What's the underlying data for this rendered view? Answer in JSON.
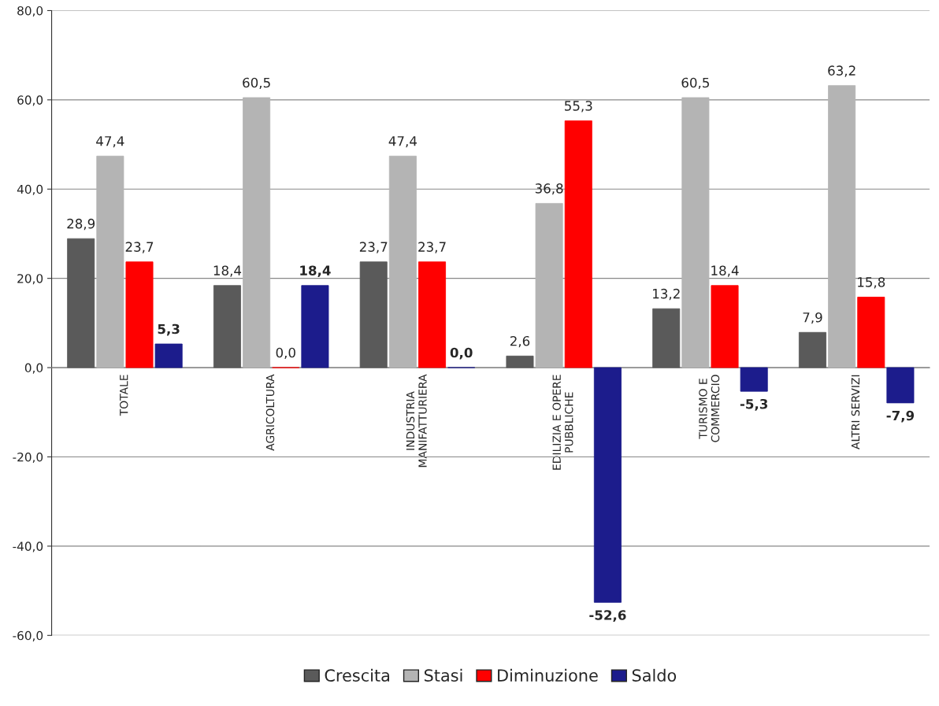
{
  "chart_data": {
    "type": "bar",
    "categories": [
      "TOTALE",
      "AGRICOLTURA",
      "INDUSTRIA\nMANIFATTURIERA",
      "EDILIZIA E OPERE\nPUBBLICHE",
      "TURISMO E\nCOMMERCIO",
      "ALTRI SERVIZI"
    ],
    "series": [
      {
        "name": "Crescita",
        "color": "#5a5a5a",
        "values": [
          28.9,
          18.4,
          23.7,
          2.6,
          13.2,
          7.9
        ],
        "value_labels": [
          "28,9",
          "18,4",
          "23,7",
          "2,6",
          "13,2",
          "7,9"
        ]
      },
      {
        "name": "Stasi",
        "color": "#b4b4b4",
        "values": [
          47.4,
          60.5,
          47.4,
          36.8,
          60.5,
          63.2
        ],
        "value_labels": [
          "47,4",
          "60,5",
          "47,4",
          "36,8",
          "60,5",
          "63,2"
        ]
      },
      {
        "name": "Diminuzione",
        "color": "#ff0000",
        "values": [
          23.7,
          0.0,
          23.7,
          55.3,
          18.4,
          15.8
        ],
        "value_labels": [
          "23,7",
          "0,0",
          "23,7",
          "55,3",
          "18,4",
          "15,8"
        ]
      },
      {
        "name": "Saldo",
        "color": "#1c1c8c",
        "values": [
          5.3,
          18.4,
          0.0,
          -52.6,
          -5.3,
          -7.9
        ],
        "value_labels": [
          "5,3",
          "18,4",
          "0,0",
          "-52,6",
          "-5,3",
          "-7,9"
        ]
      }
    ],
    "ylim": [
      -60,
      80
    ],
    "yticks": [
      {
        "value": -60,
        "label": "-60,0"
      },
      {
        "value": -40,
        "label": "-40,0"
      },
      {
        "value": -20,
        "label": "-20,0"
      },
      {
        "value": 0,
        "label": "0,0"
      },
      {
        "value": 20,
        "label": "20,0"
      },
      {
        "value": 40,
        "label": "40,0"
      },
      {
        "value": 60,
        "label": "60,0"
      },
      {
        "value": 80,
        "label": "80,0"
      }
    ],
    "grid": "y",
    "legend": "bottom"
  }
}
